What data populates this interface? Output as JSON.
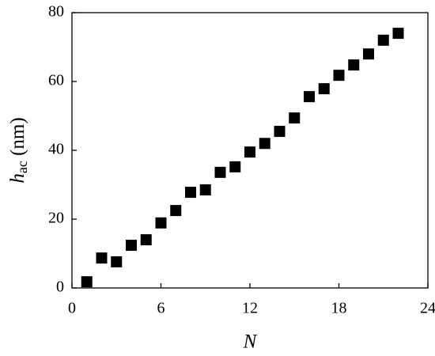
{
  "chart_data": {
    "type": "scatter",
    "xlabel": "N",
    "ylabel": [
      "h",
      "ac",
      " (nm)"
    ],
    "color": "#000000",
    "x": [
      1,
      2,
      3,
      4,
      5,
      6,
      7,
      8,
      9,
      10,
      11,
      12,
      13,
      14,
      15,
      16,
      17,
      18,
      19,
      20,
      21,
      22
    ],
    "values": [
      1.8,
      8.7,
      7.6,
      12.4,
      14,
      18.9,
      22.5,
      27.8,
      28.5,
      33.6,
      35.2,
      39.5,
      42,
      45.5,
      49.4,
      55.6,
      57.9,
      61.8,
      64.8,
      68,
      72,
      74
    ],
    "xlim": [
      0,
      24
    ],
    "xticks": [
      0,
      6,
      12,
      18,
      24
    ],
    "ylim": [
      0,
      80
    ],
    "yticks": [
      0,
      20,
      40,
      60,
      80
    ]
  }
}
